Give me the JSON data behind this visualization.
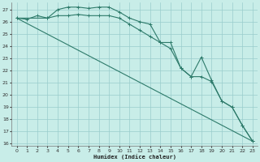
{
  "background_color": "#c8ede8",
  "grid_color": "#99cccc",
  "line_color": "#2d7a6a",
  "xlabel": "Humidex (Indice chaleur)",
  "xlim": [
    -0.5,
    23.5
  ],
  "ylim": [
    15.8,
    27.6
  ],
  "yticks": [
    16,
    17,
    18,
    19,
    20,
    21,
    22,
    23,
    24,
    25,
    26,
    27
  ],
  "xticks": [
    0,
    1,
    2,
    3,
    4,
    5,
    6,
    7,
    8,
    9,
    10,
    11,
    12,
    13,
    14,
    15,
    16,
    17,
    18,
    19,
    20,
    21,
    22,
    23
  ],
  "series": [
    {
      "x": [
        0,
        23
      ],
      "y": [
        26.3,
        16.2
      ],
      "markers": false
    },
    {
      "x": [
        0,
        1,
        2,
        3,
        4,
        5,
        6,
        7,
        8,
        9,
        10,
        11,
        12,
        13,
        14,
        15,
        16,
        17,
        18,
        19,
        20,
        21,
        22,
        23
      ],
      "y": [
        26.3,
        26.2,
        26.5,
        26.3,
        27.0,
        27.2,
        27.2,
        27.1,
        27.2,
        27.2,
        26.8,
        26.3,
        26.0,
        25.8,
        24.3,
        24.3,
        22.2,
        21.5,
        21.5,
        21.1,
        19.5,
        19.0,
        17.5,
        16.2
      ],
      "markers": true
    },
    {
      "x": [
        0,
        3,
        4,
        5,
        6,
        7,
        8,
        9,
        10,
        11,
        12,
        13,
        14,
        15,
        16,
        17,
        18,
        19,
        20,
        21,
        22,
        23
      ],
      "y": [
        26.3,
        26.3,
        26.5,
        26.5,
        26.6,
        26.5,
        26.5,
        26.5,
        26.3,
        25.8,
        25.3,
        24.8,
        24.3,
        23.8,
        22.2,
        21.5,
        23.1,
        21.2,
        19.5,
        19.0,
        17.5,
        16.2
      ],
      "markers": true
    }
  ]
}
